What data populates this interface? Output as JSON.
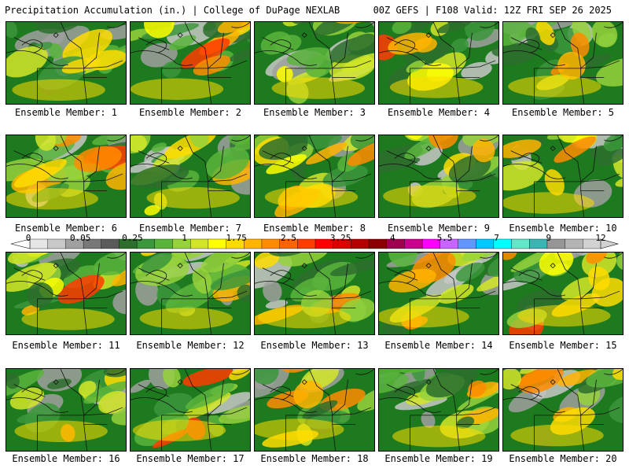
{
  "header": {
    "left": "Precipitation Accumulation (in.) | College of DuPage NEXLAB",
    "right": "00Z GEFS | F108 Valid: 12Z FRI SEP 26 2025"
  },
  "colorbar": {
    "labels": [
      "0",
      "0.05",
      "0.25",
      "1",
      "1.75",
      "2.5",
      "3.25",
      "4",
      "5.5",
      "7",
      "9",
      "12"
    ],
    "colors": [
      "#e6e6e6",
      "#c8c8c8",
      "#a0a0a0",
      "#787878",
      "#5a5a5a",
      "#2d6e2d",
      "#3c963c",
      "#5ab43c",
      "#96d23c",
      "#d2e628",
      "#ffff00",
      "#ffdc00",
      "#ffb400",
      "#ff8c00",
      "#ff6400",
      "#ff3c00",
      "#ff0000",
      "#dc0000",
      "#b40000",
      "#8c0000",
      "#a00050",
      "#c8008c",
      "#ff00ff",
      "#c864ff",
      "#6496ff",
      "#00c8ff",
      "#00ffff",
      "#64e6c8",
      "#3cb4b4",
      "#969696",
      "#b4b4b4",
      "#d2d2d2"
    ]
  },
  "panels": [
    {
      "label": "Ensemble Member: 1"
    },
    {
      "label": "Ensemble Member: 2"
    },
    {
      "label": "Ensemble Member: 3"
    },
    {
      "label": "Ensemble Member: 4"
    },
    {
      "label": "Ensemble Member: 5"
    },
    {
      "label": "Ensemble Member: 6"
    },
    {
      "label": "Ensemble Member: 7"
    },
    {
      "label": "Ensemble Member: 8"
    },
    {
      "label": "Ensemble Member: 9"
    },
    {
      "label": "Ensemble Member: 10"
    },
    {
      "label": "Ensemble Member: 11"
    },
    {
      "label": "Ensemble Member: 12"
    },
    {
      "label": "Ensemble Member: 13"
    },
    {
      "label": "Ensemble Member: 14"
    },
    {
      "label": "Ensemble Member: 15"
    },
    {
      "label": "Ensemble Member: 16"
    },
    {
      "label": "Ensemble Member: 17"
    },
    {
      "label": "Ensemble Member: 18"
    },
    {
      "label": "Ensemble Member: 19"
    },
    {
      "label": "Ensemble Member: 20"
    }
  ]
}
